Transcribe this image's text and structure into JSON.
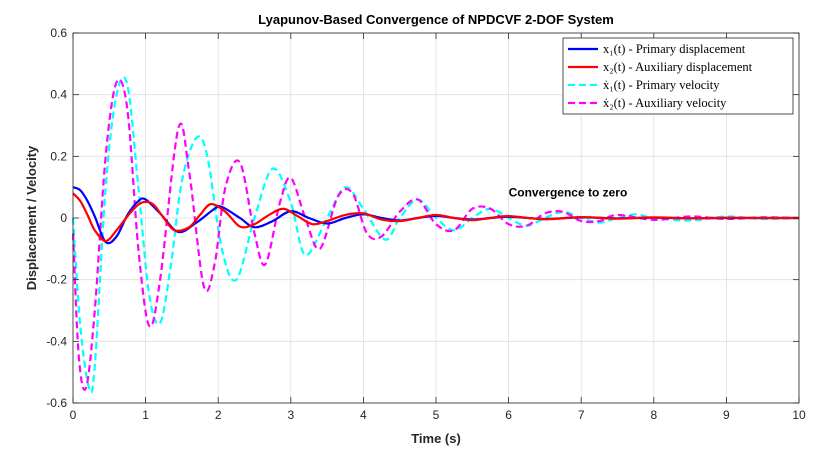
{
  "chart_data": {
    "type": "line",
    "title": "Lyapunov-Based Convergence of NPDCVF 2-DOF System",
    "xlabel": "Time (s)",
    "ylabel": "Displacement / Velocity",
    "xlim": [
      0,
      10
    ],
    "ylim": [
      -0.6,
      0.6
    ],
    "x_ticks": [
      0,
      1,
      2,
      3,
      4,
      5,
      6,
      7,
      8,
      9,
      10
    ],
    "x_tick_labels": [
      "0",
      "1",
      "2",
      "3",
      "4",
      "5",
      "6",
      "7",
      "8",
      "9",
      "10"
    ],
    "y_ticks": [
      -0.6,
      -0.4,
      -0.2,
      0,
      0.2,
      0.4,
      0.6
    ],
    "y_tick_labels": [
      "-0.6",
      "-0.4",
      "-0.2",
      "0",
      "0.2",
      "0.4",
      "0.6"
    ],
    "grid": true,
    "legend_position": "top-right",
    "annotation": {
      "text": "Convergence to zero",
      "x": 6.0,
      "y": 0.07
    },
    "series": [
      {
        "name": "x₁(t) - Primary displacement",
        "legend_label": "x1(t) - Primary displacement",
        "color": "#0000ff",
        "style": "solid",
        "x": [
          0,
          0.1,
          0.2,
          0.3,
          0.45,
          0.6,
          0.75,
          0.9,
          1.0,
          1.2,
          1.45,
          1.7,
          1.95,
          2.05,
          2.3,
          2.5,
          2.75,
          3.0,
          3.25,
          3.5,
          3.75,
          4.0,
          4.25,
          4.5,
          4.75,
          5.0,
          5.25,
          5.5,
          5.75,
          6.0,
          6.5,
          7.0,
          7.5,
          8.0,
          8.5,
          9.0,
          9.5,
          10.0
        ],
        "y": [
          0.1,
          0.09,
          0.055,
          0.005,
          -0.078,
          -0.06,
          0.01,
          0.055,
          0.06,
          0.015,
          -0.045,
          -0.015,
          0.03,
          0.036,
          0.0,
          -0.03,
          -0.01,
          0.022,
          0.0,
          -0.018,
          0.0,
          0.012,
          0.0,
          -0.008,
          0.0,
          0.007,
          0.0,
          -0.005,
          0.0,
          0.004,
          -0.003,
          0.002,
          -0.001,
          0.001,
          -0.001,
          0.0,
          0.0,
          0.0
        ]
      },
      {
        "name": "x₂(t) - Auxiliary displacement",
        "legend_label": "x2(t) - Auxiliary displacement",
        "color": "#ff0000",
        "style": "solid",
        "x": [
          0,
          0.1,
          0.2,
          0.3,
          0.45,
          0.6,
          0.8,
          0.95,
          1.1,
          1.25,
          1.4,
          1.6,
          1.75,
          1.9,
          2.1,
          2.3,
          2.5,
          2.7,
          2.9,
          3.1,
          3.3,
          3.5,
          3.75,
          4.0,
          4.25,
          4.5,
          4.75,
          5.0,
          5.25,
          5.5,
          5.75,
          6.0,
          6.5,
          7.0,
          7.5,
          8.0,
          8.5,
          9.0,
          9.5,
          10.0
        ],
        "y": [
          0.08,
          0.055,
          0.01,
          -0.04,
          -0.075,
          -0.04,
          0.02,
          0.05,
          0.045,
          0.0,
          -0.04,
          -0.03,
          0.01,
          0.045,
          0.02,
          -0.028,
          -0.02,
          0.01,
          0.03,
          0.005,
          -0.02,
          -0.01,
          0.01,
          0.015,
          -0.005,
          -0.01,
          0.0,
          0.01,
          0.0,
          -0.007,
          0.0,
          0.006,
          -0.004,
          0.003,
          -0.002,
          0.002,
          -0.001,
          0.001,
          0.0,
          0.0
        ]
      },
      {
        "name": "ẋ₁(t) - Primary velocity",
        "legend_label": "x1'(t) - Primary velocity",
        "color": "#00ffff",
        "style": "dashed",
        "x": [
          0,
          0.1,
          0.22,
          0.3,
          0.45,
          0.6,
          0.75,
          0.9,
          1.05,
          1.2,
          1.35,
          1.5,
          1.7,
          1.85,
          2.05,
          2.25,
          2.5,
          2.75,
          3.0,
          3.2,
          3.5,
          3.75,
          4.0,
          4.3,
          4.5,
          4.75,
          5.0,
          5.25,
          5.5,
          5.75,
          6.0,
          6.25,
          6.5,
          6.75,
          7.0,
          7.25,
          7.5,
          7.75,
          8.0,
          8.5,
          9.0,
          9.5,
          10.0
        ],
        "y": [
          0.0,
          -0.35,
          -0.55,
          -0.48,
          0.1,
          0.4,
          0.43,
          0.1,
          -0.25,
          -0.34,
          -0.15,
          0.12,
          0.26,
          0.2,
          -0.1,
          -0.2,
          0.0,
          0.16,
          0.05,
          -0.12,
          0.0,
          0.1,
          0.03,
          -0.07,
          0.0,
          0.06,
          0.0,
          -0.04,
          0.0,
          0.03,
          0.0,
          -0.025,
          0.0,
          0.02,
          0.0,
          -0.015,
          0.0,
          0.012,
          0.0,
          -0.008,
          0.005,
          -0.003,
          0.0
        ]
      },
      {
        "name": "ẋ₂(t) - Auxiliary velocity",
        "legend_label": "x2'(t) - Auxiliary velocity",
        "color": "#ff00ff",
        "style": "dashed",
        "x": [
          0,
          0.08,
          0.18,
          0.3,
          0.45,
          0.6,
          0.75,
          0.9,
          1.05,
          1.2,
          1.45,
          1.6,
          1.8,
          1.95,
          2.1,
          2.3,
          2.5,
          2.65,
          2.85,
          3.0,
          3.2,
          3.4,
          3.65,
          3.85,
          4.05,
          4.25,
          4.5,
          4.75,
          5.0,
          5.25,
          5.5,
          5.75,
          6.0,
          6.25,
          6.5,
          6.75,
          7.0,
          7.25,
          7.5,
          8.0,
          8.5,
          9.0,
          9.5,
          10.0
        ],
        "y": [
          -0.05,
          -0.45,
          -0.55,
          -0.3,
          0.2,
          0.44,
          0.35,
          -0.1,
          -0.35,
          -0.2,
          0.29,
          0.15,
          -0.22,
          -0.15,
          0.1,
          0.18,
          -0.05,
          -0.15,
          0.05,
          0.13,
          0.0,
          -0.1,
          0.07,
          0.08,
          -0.05,
          -0.06,
          0.02,
          0.06,
          -0.02,
          -0.04,
          0.03,
          0.03,
          -0.02,
          -0.025,
          0.015,
          0.02,
          -0.01,
          -0.01,
          0.01,
          -0.006,
          0.005,
          -0.003,
          0.002,
          0.0
        ]
      }
    ]
  }
}
